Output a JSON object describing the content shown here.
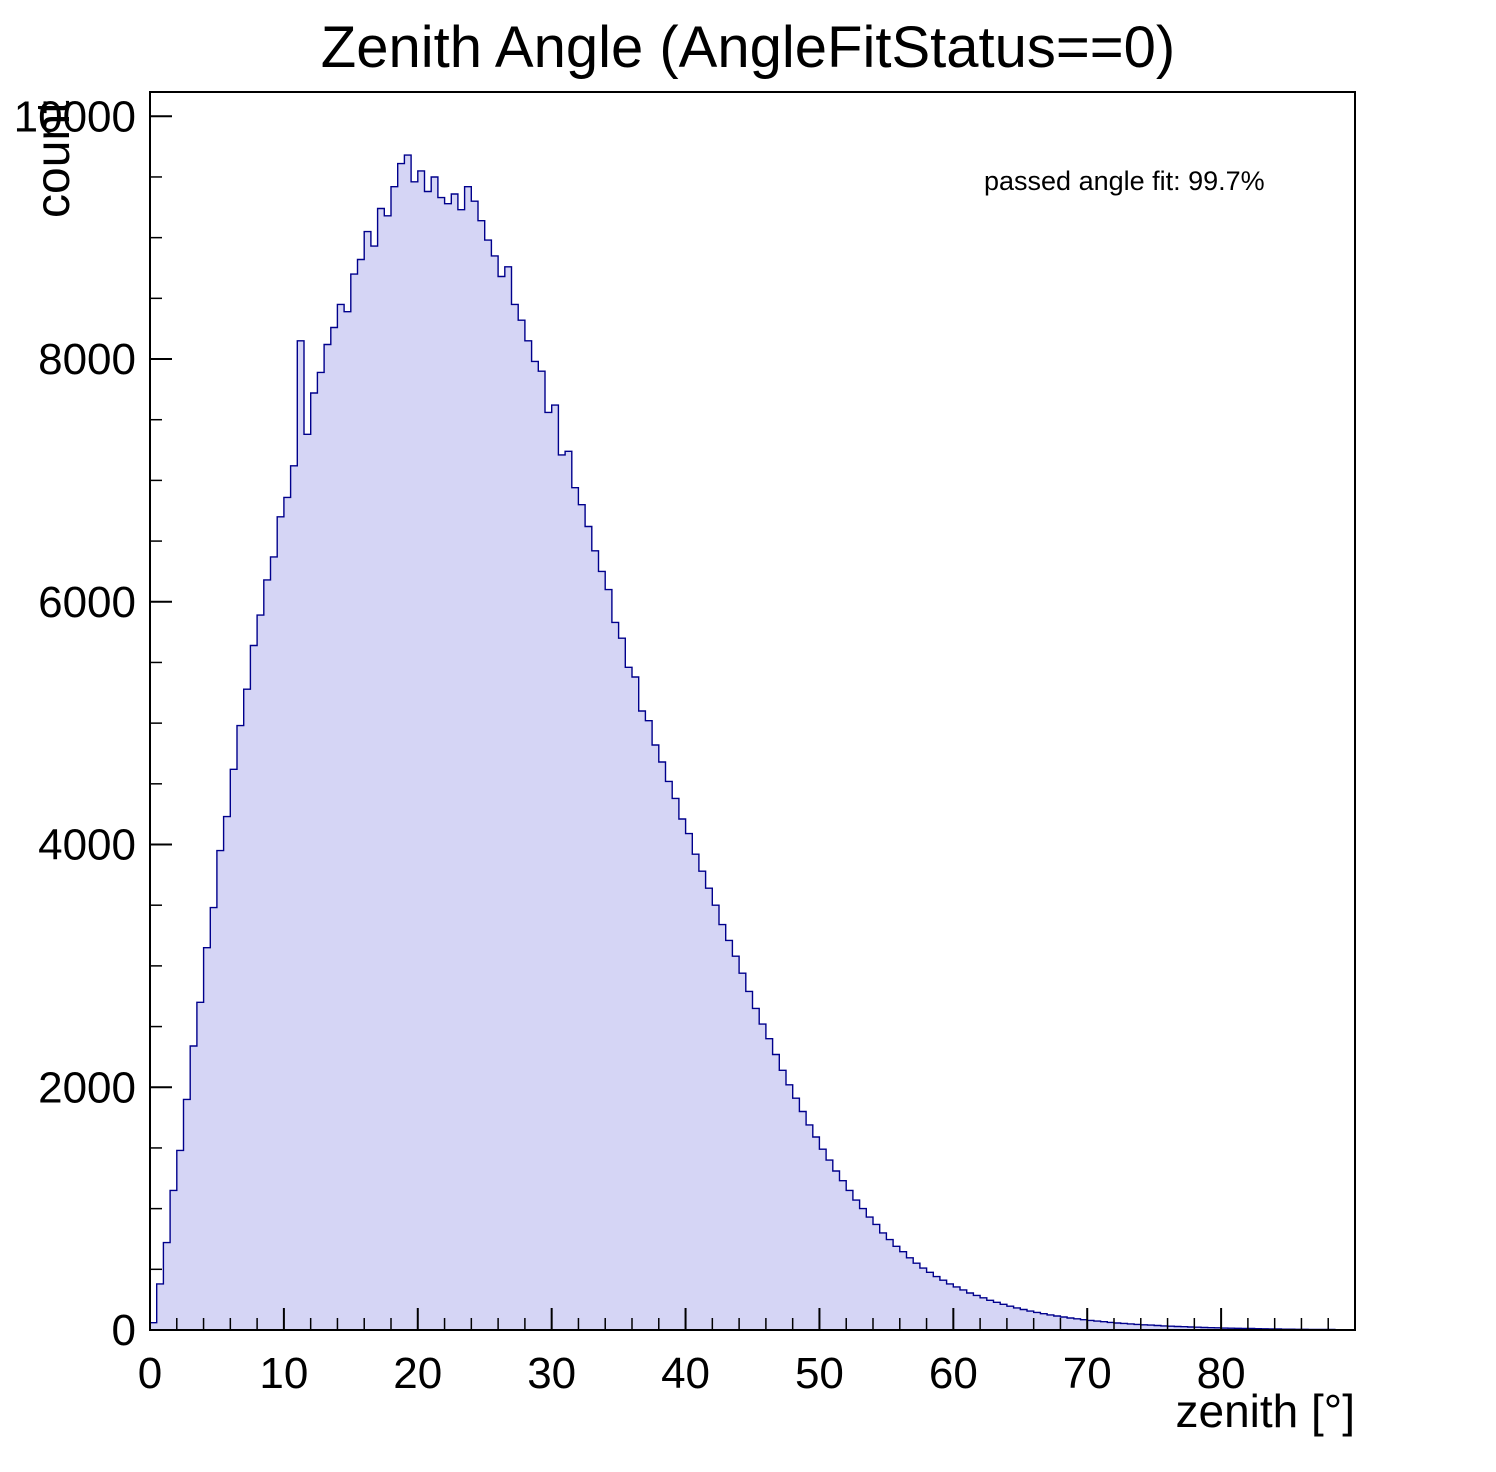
{
  "chart_data": {
    "type": "bar",
    "subtype": "histogram",
    "title": "Zenith Angle (AngleFitStatus==0)",
    "xlabel": "zenith [°]",
    "ylabel": "count",
    "annotation": "passed angle fit: 99.7%",
    "xlim": [
      0,
      90
    ],
    "ylim": [
      0,
      10200
    ],
    "x_ticks": [
      0,
      10,
      20,
      30,
      40,
      50,
      60,
      70,
      80
    ],
    "y_ticks": [
      0,
      2000,
      4000,
      6000,
      8000,
      10000
    ],
    "x_minor_step": 2,
    "y_minor_step": 500,
    "bin_start": 0,
    "bin_width": 0.5,
    "fill_color": "#d5d5f5",
    "line_color": "#00008c",
    "counts": [
      60,
      380,
      720,
      1150,
      1480,
      1900,
      2340,
      2700,
      3150,
      3480,
      3950,
      4230,
      4620,
      4980,
      5280,
      5640,
      5890,
      6180,
      6370,
      6700,
      6860,
      7120,
      8150,
      7380,
      7720,
      7890,
      8120,
      8260,
      8450,
      8390,
      8700,
      8820,
      9050,
      8930,
      9240,
      9180,
      9420,
      9610,
      9680,
      9460,
      9550,
      9380,
      9500,
      9330,
      9280,
      9360,
      9230,
      9420,
      9300,
      9140,
      8980,
      8850,
      8680,
      8760,
      8450,
      8320,
      8150,
      7980,
      7900,
      7560,
      7620,
      7210,
      7240,
      6940,
      6800,
      6620,
      6420,
      6250,
      6100,
      5830,
      5700,
      5460,
      5380,
      5100,
      5020,
      4820,
      4680,
      4520,
      4380,
      4210,
      4090,
      3920,
      3780,
      3640,
      3500,
      3340,
      3210,
      3080,
      2940,
      2790,
      2650,
      2520,
      2400,
      2270,
      2140,
      2020,
      1910,
      1800,
      1690,
      1590,
      1490,
      1400,
      1310,
      1230,
      1150,
      1070,
      1000,
      930,
      870,
      800,
      745,
      690,
      645,
      595,
      550,
      510,
      475,
      440,
      410,
      380,
      355,
      330,
      305,
      285,
      265,
      245,
      228,
      212,
      196,
      182,
      169,
      156,
      145,
      134,
      124,
      115,
      107,
      99,
      92,
      85,
      79,
      73,
      68,
      63,
      58,
      54,
      50,
      46,
      43,
      40,
      37,
      34,
      31,
      29,
      27,
      25,
      23,
      21,
      19,
      18,
      16,
      15,
      14,
      13,
      12,
      11,
      10,
      9,
      8,
      7,
      7,
      6,
      6,
      5,
      5,
      4,
      4
    ]
  }
}
